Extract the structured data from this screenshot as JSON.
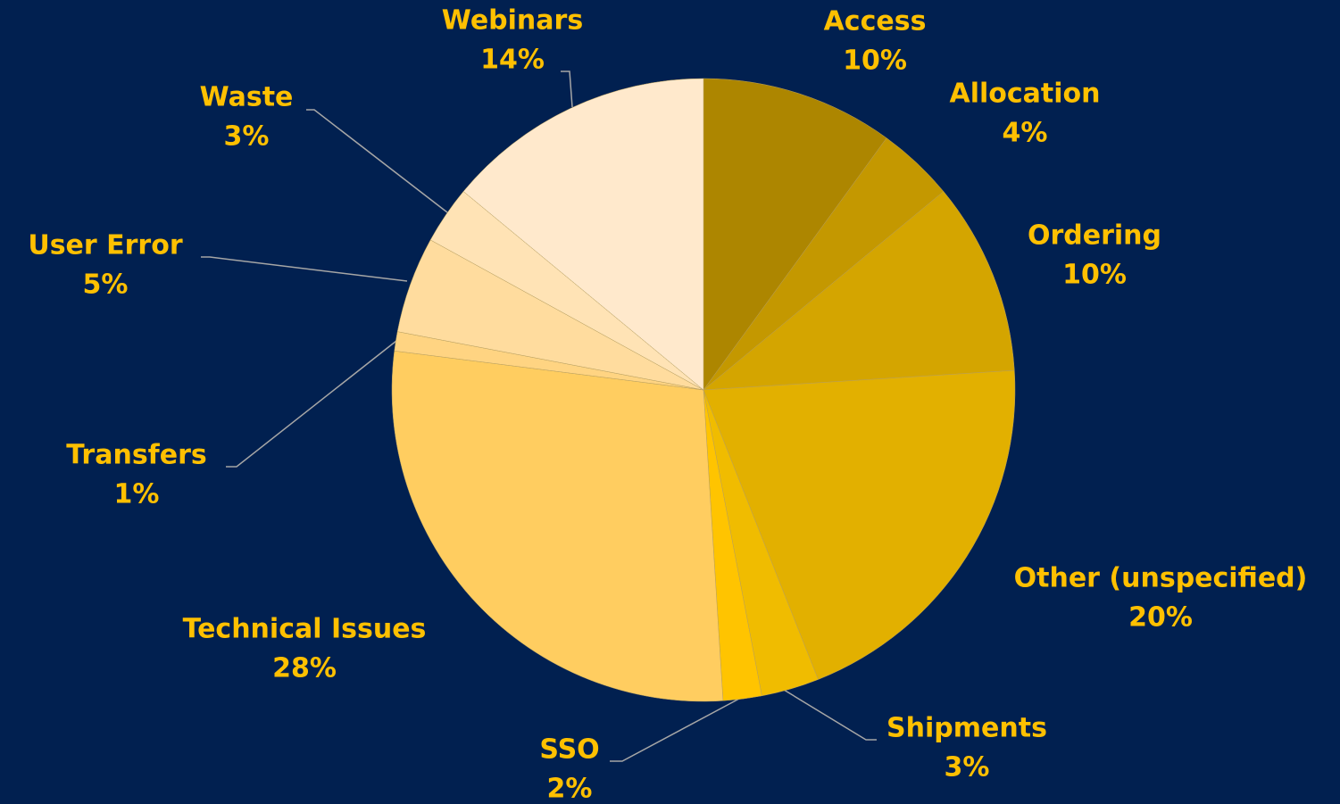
{
  "chart_data": {
    "type": "pie",
    "categories": [
      "Access",
      "Allocation",
      "Ordering",
      "Other (unspecified)",
      "Shipments",
      "SSO",
      "Technical Issues",
      "Transfers",
      "User Error",
      "Waste",
      "Webinars"
    ],
    "values": [
      10,
      4,
      10,
      20,
      3,
      2,
      28,
      1,
      5,
      3,
      14
    ],
    "value_labels": [
      "10%",
      "4%",
      "10%",
      "20%",
      "3%",
      "2%",
      "28%",
      "1%",
      "5%",
      "3%",
      "14%"
    ],
    "colors": [
      "#ad8600",
      "#c49800",
      "#d4a500",
      "#e2b000",
      "#f0bc00",
      "#ffc400",
      "#ffcd60",
      "#ffd482",
      "#ffdc9e",
      "#ffe3b5",
      "#ffe9cc"
    ]
  }
}
